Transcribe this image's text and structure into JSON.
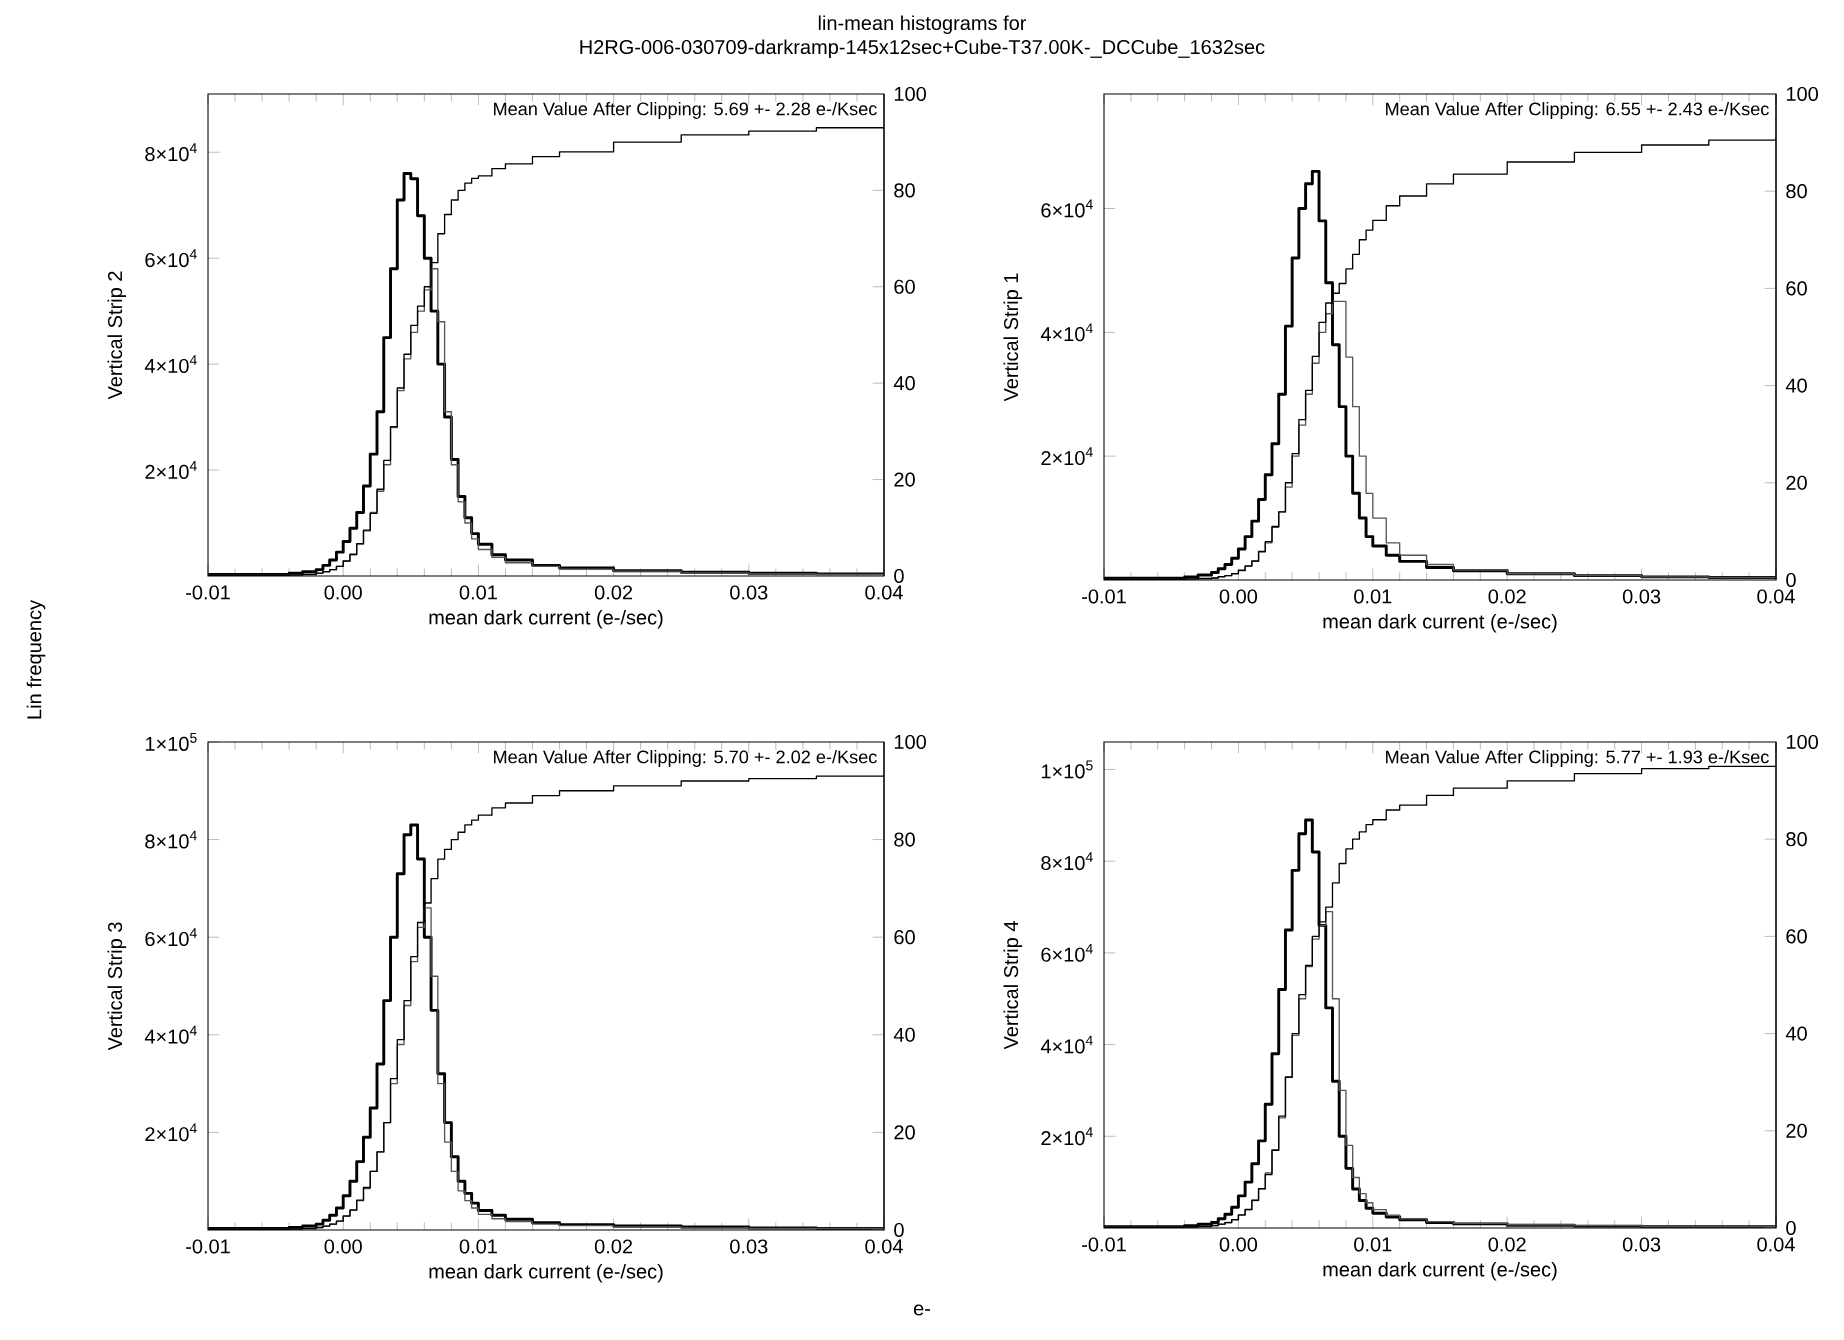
{
  "chart_data": [
    {
      "type": "step",
      "xlabel": "mean dark current (e-/sec)",
      "ylabel": "Vertical Strip 2",
      "annotations": [
        "Mean Value After Clipping:  5.69 +- 2.28 e-/Ksec"
      ],
      "xlim": [
        -0.01,
        0.04
      ],
      "xticks": [
        {
          "value": -0.01,
          "label": "-0.01"
        },
        {
          "value": 0,
          "label": "0.00"
        },
        {
          "value": 0.01,
          "label": "0.01"
        },
        {
          "value": 0.02,
          "label": "0.02"
        },
        {
          "value": 0.03,
          "label": "0.03"
        },
        {
          "value": 0.04,
          "label": "0.04"
        }
      ],
      "ylim": [
        0,
        91000
      ],
      "yticks": [
        {
          "value": 20000,
          "label": "2×10$^{4}$"
        },
        {
          "value": 40000,
          "label": "4×10$^{4}$"
        },
        {
          "value": 60000,
          "label": "6×10$^{4}$"
        },
        {
          "value": 80000,
          "label": "8×10$^{4}$"
        }
      ],
      "y2lim": [
        0,
        100
      ],
      "y2ticks": [
        0,
        20,
        40,
        60,
        80,
        100
      ],
      "x": [
        -0.01,
        -0.004,
        -0.003,
        -0.002,
        -0.0015,
        -0.001,
        -0.0005,
        0,
        0.0005,
        0.001,
        0.0015,
        0.002,
        0.0025,
        0.003,
        0.0035,
        0.004,
        0.0045,
        0.005,
        0.0055,
        0.006,
        0.0065,
        0.007,
        0.0075,
        0.008,
        0.0085,
        0.009,
        0.0095,
        0.01,
        0.011,
        0.012,
        0.014,
        0.016,
        0.02,
        0.025,
        0.03,
        0.035,
        0.04
      ],
      "series": [
        {
          "color": "#000000",
          "values": [
            300,
            500,
            800,
            1200,
            2000,
            3000,
            4500,
            6500,
            9000,
            12000,
            17000,
            23000,
            31000,
            45000,
            58000,
            71000,
            76000,
            75000,
            68000,
            60000,
            50000,
            40000,
            30000,
            22000,
            15000,
            11000,
            8000,
            6000,
            4000,
            3000,
            2000,
            1500,
            1000,
            700,
            500,
            400,
            400
          ]
        },
        {
          "color": "#555555",
          "values": [
            100,
            200,
            300,
            500,
            800,
            1200,
            1800,
            2800,
            4000,
            6000,
            8500,
            12000,
            16000,
            21000,
            28000,
            35000,
            41000,
            46000,
            50000,
            54000,
            58000,
            48000,
            31000,
            21000,
            14000,
            10000,
            7000,
            5000,
            3500,
            2500,
            1800,
            1300,
            900,
            600,
            400,
            300,
            300
          ]
        },
        {
          "color": "#000000",
          "axis": "y2",
          "values": [
            0.1,
            0.2,
            0.3,
            0.6,
            0.9,
            1.3,
            2,
            3.1,
            4.5,
            6.7,
            9.5,
            13,
            18,
            24,
            31,
            39,
            46,
            52,
            56,
            60,
            65,
            71,
            75,
            78,
            80,
            81.5,
            82.5,
            83,
            84.5,
            85.5,
            87,
            88,
            90,
            91.5,
            92.3,
            93,
            93
          ]
        }
      ]
    },
    {
      "type": "step",
      "xlabel": "mean dark current (e-/sec)",
      "ylabel": "Vertical Strip 1",
      "annotations": [
        "Mean Value After Clipping:  6.55 +- 2.43 e-/Ksec"
      ],
      "xlim": [
        -0.01,
        0.04
      ],
      "xticks": [
        {
          "value": -0.01,
          "label": "-0.01"
        },
        {
          "value": 0,
          "label": "0.00"
        },
        {
          "value": 0.01,
          "label": "0.01"
        },
        {
          "value": 0.02,
          "label": "0.02"
        },
        {
          "value": 0.03,
          "label": "0.03"
        },
        {
          "value": 0.04,
          "label": "0.04"
        }
      ],
      "ylim": [
        0,
        78500
      ],
      "yticks": [
        {
          "value": 20000,
          "label": "2×10$^{4}$"
        },
        {
          "value": 40000,
          "label": "4×10$^{4}$"
        },
        {
          "value": 60000,
          "label": "6×10$^{4}$"
        }
      ],
      "y2lim": [
        0,
        100
      ],
      "y2ticks": [
        0,
        20,
        40,
        60,
        80,
        100
      ],
      "x": [
        -0.01,
        -0.004,
        -0.003,
        -0.002,
        -0.0015,
        -0.001,
        -0.0005,
        0,
        0.0005,
        0.001,
        0.0015,
        0.002,
        0.0025,
        0.003,
        0.0035,
        0.004,
        0.0045,
        0.005,
        0.0055,
        0.006,
        0.0065,
        0.007,
        0.0075,
        0.008,
        0.0085,
        0.009,
        0.0095,
        0.01,
        0.011,
        0.012,
        0.014,
        0.016,
        0.02,
        0.025,
        0.03,
        0.035,
        0.04
      ],
      "series": [
        {
          "color": "#000000",
          "values": [
            300,
            500,
            800,
            1200,
            1800,
            2500,
            3500,
            5000,
            7000,
            9500,
            13000,
            17000,
            22000,
            30000,
            41000,
            52000,
            60000,
            64000,
            66000,
            58000,
            48000,
            38000,
            28000,
            20000,
            14000,
            10000,
            7000,
            5500,
            4000,
            3000,
            2000,
            1500,
            1000,
            700,
            500,
            400,
            400
          ]
        },
        {
          "color": "#555555",
          "values": [
            100,
            150,
            200,
            300,
            500,
            700,
            1000,
            1500,
            2200,
            3000,
            4500,
            6000,
            8500,
            11000,
            15000,
            20000,
            25000,
            30000,
            35000,
            40000,
            43000,
            45000,
            45000,
            36000,
            28000,
            20000,
            14000,
            10000,
            6000,
            4000,
            2500,
            1600,
            1000,
            700,
            500,
            400,
            400
          ]
        },
        {
          "color": "#000000",
          "axis": "y2",
          "values": [
            0.1,
            0.2,
            0.3,
            0.4,
            0.7,
            0.9,
            1.3,
            2,
            2.9,
            3.9,
            5.9,
            7.9,
            11,
            14,
            20,
            26,
            33,
            39,
            46,
            53,
            57,
            59,
            61,
            64,
            67,
            70,
            72,
            74,
            77,
            79,
            81.5,
            83.5,
            86,
            88,
            89.5,
            90.5,
            91
          ]
        }
      ]
    },
    {
      "type": "step",
      "xlabel": "mean dark current (e-/sec)",
      "ylabel": "Vertical Strip 3",
      "annotations": [
        "Mean Value After Clipping:  5.70 +- 2.02 e-/Ksec"
      ],
      "xlim": [
        -0.01,
        0.04
      ],
      "xticks": [
        {
          "value": -0.01,
          "label": "-0.01"
        },
        {
          "value": 0,
          "label": "0.00"
        },
        {
          "value": 0.01,
          "label": "0.01"
        },
        {
          "value": 0.02,
          "label": "0.02"
        },
        {
          "value": 0.03,
          "label": "0.03"
        },
        {
          "value": 0.04,
          "label": "0.04"
        }
      ],
      "ylim": [
        0,
        100000
      ],
      "yticks": [
        {
          "value": 20000,
          "label": "2×10$^{4}$"
        },
        {
          "value": 40000,
          "label": "4×10$^{4}$"
        },
        {
          "value": 60000,
          "label": "6×10$^{4}$"
        },
        {
          "value": 80000,
          "label": "8×10$^{4}$"
        },
        {
          "value": 100000,
          "label": "1×10$^{5}$"
        }
      ],
      "y2lim": [
        0,
        100
      ],
      "y2ticks": [
        0,
        20,
        40,
        60,
        80,
        100
      ],
      "x": [
        -0.01,
        -0.004,
        -0.003,
        -0.002,
        -0.0015,
        -0.001,
        -0.0005,
        0,
        0.0005,
        0.001,
        0.0015,
        0.002,
        0.0025,
        0.003,
        0.0035,
        0.004,
        0.0045,
        0.005,
        0.0055,
        0.006,
        0.0065,
        0.007,
        0.0075,
        0.008,
        0.0085,
        0.009,
        0.0095,
        0.01,
        0.011,
        0.012,
        0.014,
        0.016,
        0.02,
        0.025,
        0.03,
        0.035,
        0.04
      ],
      "series": [
        {
          "color": "#000000",
          "values": [
            300,
            500,
            800,
            1200,
            2000,
            3000,
            4500,
            7000,
            10000,
            14000,
            19000,
            25000,
            34000,
            47000,
            60000,
            73000,
            81000,
            83000,
            76000,
            60000,
            45000,
            32000,
            22000,
            15000,
            10000,
            7500,
            5500,
            4000,
            3000,
            2200,
            1500,
            1100,
            800,
            600,
            400,
            300,
            300
          ]
        },
        {
          "color": "#555555",
          "values": [
            100,
            200,
            300,
            500,
            800,
            1200,
            1800,
            2800,
            4000,
            6000,
            8500,
            12000,
            16000,
            22000,
            30000,
            38000,
            46000,
            55000,
            62000,
            66000,
            52000,
            30000,
            18000,
            12000,
            8000,
            6000,
            4500,
            3200,
            2300,
            1700,
            1200,
            900,
            600,
            400,
            300,
            300,
            300
          ]
        },
        {
          "color": "#000000",
          "axis": "y2",
          "values": [
            0.1,
            0.2,
            0.3,
            0.5,
            0.8,
            1.2,
            1.8,
            2.9,
            4.1,
            6.1,
            8.7,
            12,
            16,
            22,
            31,
            39,
            47,
            56,
            63,
            67,
            72,
            76,
            78,
            80,
            81.5,
            83,
            84,
            85,
            86.5,
            87.5,
            89,
            90,
            91,
            92,
            92.5,
            93,
            93
          ]
        }
      ]
    },
    {
      "type": "step",
      "xlabel": "mean dark current (e-/sec)",
      "ylabel": "Vertical Strip 4",
      "annotations": [
        "Mean Value After Clipping:  5.77 +- 1.93 e-/Ksec"
      ],
      "xlim": [
        -0.01,
        0.04
      ],
      "xticks": [
        {
          "value": -0.01,
          "label": "-0.01"
        },
        {
          "value": 0,
          "label": "0.00"
        },
        {
          "value": 0.01,
          "label": "0.01"
        },
        {
          "value": 0.02,
          "label": "0.02"
        },
        {
          "value": 0.03,
          "label": "0.03"
        },
        {
          "value": 0.04,
          "label": "0.04"
        }
      ],
      "ylim": [
        0,
        106000
      ],
      "yticks": [
        {
          "value": 20000,
          "label": "2×10$^{4}$"
        },
        {
          "value": 40000,
          "label": "4×10$^{4}$"
        },
        {
          "value": 60000,
          "label": "6×10$^{4}$"
        },
        {
          "value": 80000,
          "label": "8×10$^{4}$"
        },
        {
          "value": 100000,
          "label": "1×10$^{5}$"
        }
      ],
      "y2lim": [
        0,
        100
      ],
      "y2ticks": [
        0,
        20,
        40,
        60,
        80,
        100
      ],
      "x": [
        -0.01,
        -0.004,
        -0.003,
        -0.002,
        -0.0015,
        -0.001,
        -0.0005,
        0,
        0.0005,
        0.001,
        0.0015,
        0.002,
        0.0025,
        0.003,
        0.0035,
        0.004,
        0.0045,
        0.005,
        0.0055,
        0.006,
        0.0065,
        0.007,
        0.0075,
        0.008,
        0.0085,
        0.009,
        0.0095,
        0.01,
        0.011,
        0.012,
        0.014,
        0.016,
        0.02,
        0.025,
        0.03,
        0.035,
        0.04
      ],
      "series": [
        {
          "color": "#000000",
          "values": [
            300,
            500,
            800,
            1200,
            2000,
            3000,
            4500,
            7000,
            10000,
            14000,
            19000,
            27000,
            38000,
            52000,
            65000,
            78000,
            86000,
            89000,
            82000,
            66000,
            48000,
            32000,
            20000,
            13000,
            8500,
            6000,
            4300,
            3200,
            2400,
            1800,
            1200,
            900,
            600,
            400,
            300,
            300,
            300
          ]
        },
        {
          "color": "#555555",
          "values": [
            100,
            200,
            300,
            500,
            800,
            1200,
            1800,
            2800,
            4000,
            6000,
            8500,
            12000,
            17000,
            24000,
            33000,
            42000,
            50000,
            57000,
            63000,
            66000,
            69000,
            50000,
            30000,
            18000,
            11000,
            7500,
            5500,
            4000,
            2800,
            2000,
            1400,
            1000,
            700,
            500,
            300,
            300,
            300
          ]
        },
        {
          "color": "#000000",
          "axis": "y2",
          "values": [
            0.1,
            0.2,
            0.3,
            0.5,
            0.8,
            1.1,
            1.7,
            2.7,
            3.8,
            5.7,
            8.1,
            11,
            16,
            23,
            31,
            40,
            48,
            54,
            60,
            63,
            66,
            71,
            75,
            78,
            80,
            81.5,
            83,
            84,
            86,
            87,
            89,
            90.5,
            92,
            93.5,
            94.5,
            95,
            95
          ]
        }
      ]
    },
    {
      "type": "other",
      "title": "lin-mean histograms for",
      "subtitle": "H2RG-006-030709-darkramp-145x12sec+Cube-T37.00K-_DCCube_1632sec",
      "ylabel": "Lin frequency",
      "xlabel": "e-"
    }
  ]
}
